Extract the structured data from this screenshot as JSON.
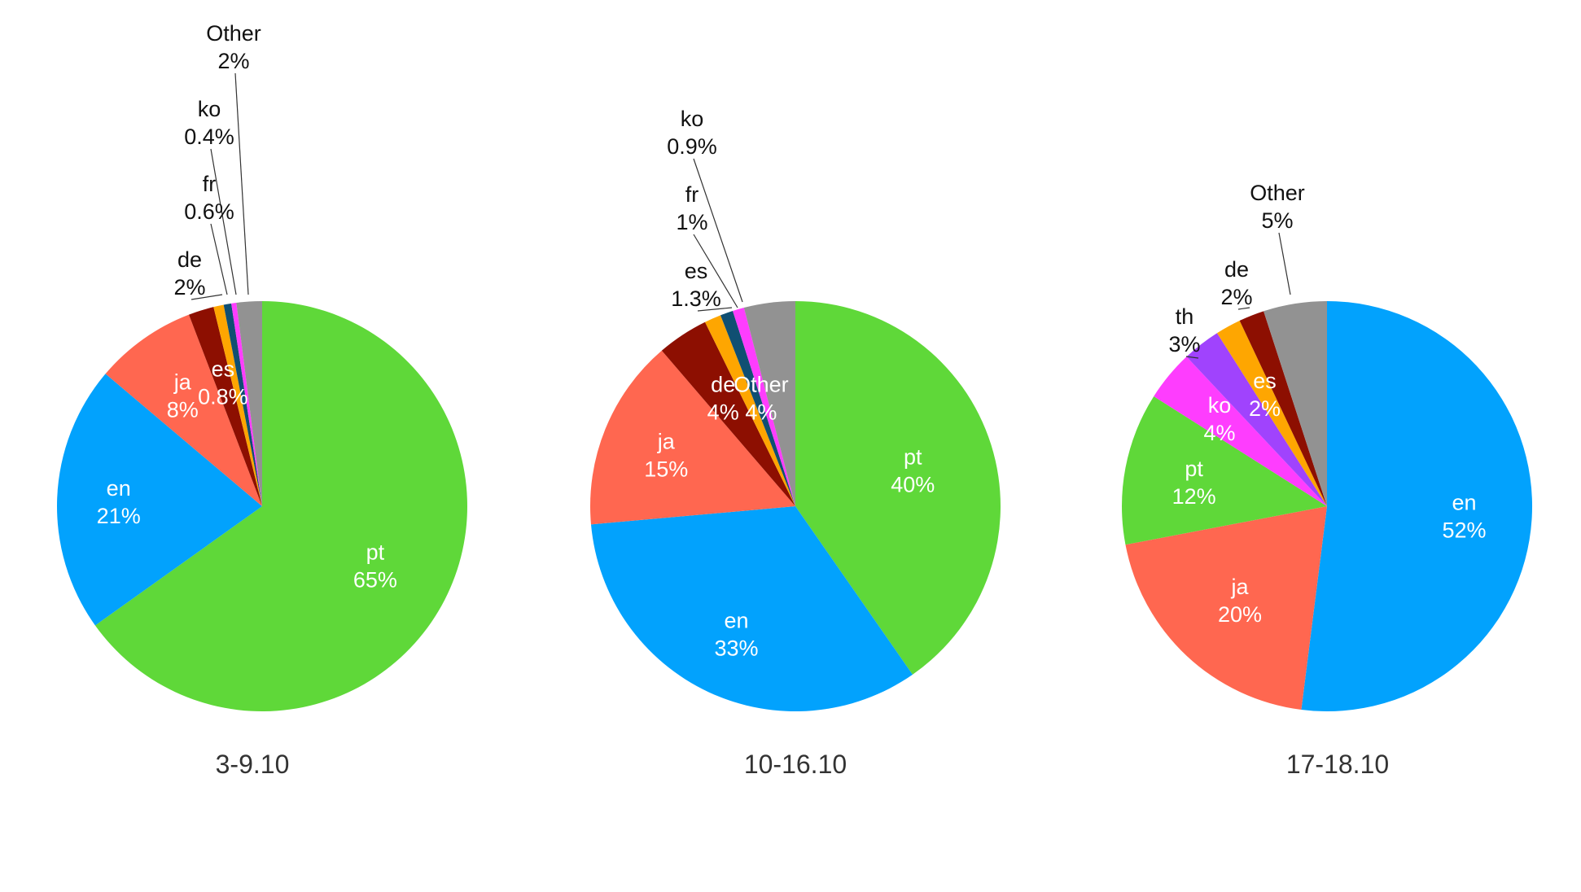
{
  "colors": {
    "en": "#02a2fd",
    "pt": "#5fd839",
    "ja": "#ff6750",
    "de": "#8d0f01",
    "es": "#fea601",
    "fr": "#104f72",
    "ko": "#fe3dfe",
    "th": "#a043fd",
    "Other": "#929292"
  },
  "chart_data": [
    {
      "type": "pie",
      "title": "3-9.10",
      "slices": [
        {
          "label": "pt",
          "value": 65,
          "text": "65%"
        },
        {
          "label": "en",
          "value": 21,
          "text": "21%"
        },
        {
          "label": "ja",
          "value": 8,
          "text": "8%"
        },
        {
          "label": "de",
          "value": 2,
          "text": "2%"
        },
        {
          "label": "es",
          "value": 0.8,
          "text": "0.8%"
        },
        {
          "label": "fr",
          "value": 0.6,
          "text": "0.6%"
        },
        {
          "label": "ko",
          "value": 0.4,
          "text": "0.4%"
        },
        {
          "label": "Other",
          "value": 2,
          "text": "2%"
        }
      ]
    },
    {
      "type": "pie",
      "title": "10-16.10",
      "slices": [
        {
          "label": "pt",
          "value": 40,
          "text": "40%"
        },
        {
          "label": "en",
          "value": 33,
          "text": "33%"
        },
        {
          "label": "ja",
          "value": 15,
          "text": "15%"
        },
        {
          "label": "de",
          "value": 4,
          "text": "4%"
        },
        {
          "label": "es",
          "value": 1.3,
          "text": "1.3%"
        },
        {
          "label": "fr",
          "value": 1,
          "text": "1%"
        },
        {
          "label": "ko",
          "value": 0.9,
          "text": "0.9%"
        },
        {
          "label": "Other",
          "value": 4,
          "text": "4%"
        }
      ]
    },
    {
      "type": "pie",
      "title": "17-18.10",
      "slices": [
        {
          "label": "en",
          "value": 52,
          "text": "52%"
        },
        {
          "label": "ja",
          "value": 20,
          "text": "20%"
        },
        {
          "label": "pt",
          "value": 12,
          "text": "12%"
        },
        {
          "label": "ko",
          "value": 4,
          "text": "4%"
        },
        {
          "label": "th",
          "value": 3,
          "text": "3%"
        },
        {
          "label": "es",
          "value": 2,
          "text": "2%"
        },
        {
          "label": "de",
          "value": 2,
          "text": "2%"
        },
        {
          "label": "Other",
          "value": 5,
          "text": "5%"
        }
      ]
    }
  ]
}
